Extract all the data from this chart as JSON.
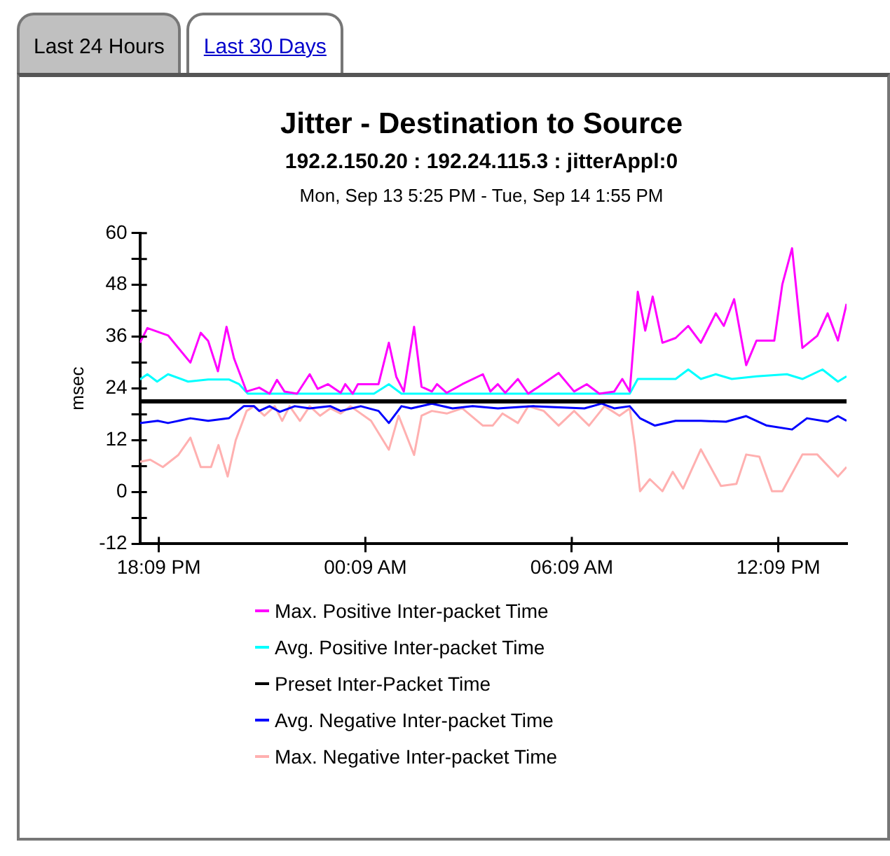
{
  "chart_data": {
    "type": "line",
    "title": "Jitter - Destination to Source",
    "subtitle": "192.2.150.20 : 192.24.115.3 : jitterAppl:0",
    "annotations": [
      "Last 24 Hours",
      "Last 30 Days",
      "Mon, Sep 13 5:25 PM - Tue, Sep 14 1:55 PM"
    ],
    "ylabel": "msec",
    "xlim": [
      "--09-13T17:36",
      "--09-14T14:08"
    ],
    "ylim": [
      -12,
      60
    ],
    "xticks": [
      {
        "value": "--09-13T18:09",
        "label": "18:09 PM"
      },
      {
        "value": "--09-14T00:09",
        "label": "00:09 AM"
      },
      {
        "value": "--09-14T06:09",
        "label": "06:09 AM"
      },
      {
        "value": "--09-14T12:09",
        "label": "12:09 PM"
      }
    ],
    "yticks": [
      -12,
      {
        "value": -6,
        "label": null
      },
      0,
      {
        "value": 6,
        "label": null
      },
      12,
      {
        "value": 18,
        "label": null
      },
      24,
      {
        "value": 30,
        "label": null
      },
      36,
      {
        "value": 42,
        "label": null
      },
      48,
      {
        "value": 54,
        "label": null
      },
      60
    ],
    "grid": false,
    "legend": "bottom",
    "marker": "none",
    "line_style": "solid",
    "series": [
      {
        "name": "Max. Positive Inter-packet Time",
        "color": "#ff00ff",
        "x": [
          "--09-13T17:36",
          "--09-13T17:49",
          "--09-13T18:25",
          "--09-13T19:04",
          "--09-13T19:22",
          "--09-13T19:35",
          "--09-13T19:52",
          "--09-13T20:07",
          "--09-13T20:20",
          "--09-13T20:42",
          "--09-13T21:04",
          "--09-13T21:22",
          "--09-13T21:35",
          "--09-13T21:48",
          "--09-13T22:10",
          "--09-13T22:32",
          "--09-13T22:46",
          "--09-13T23:04",
          "--09-13T23:26",
          "--09-13T23:34",
          "--09-13T23:47",
          "--09-13T23:56",
          "--09-14T00:32",
          "--09-14T00:50",
          "--09-14T01:03",
          "--09-14T01:16",
          "--09-14T01:34",
          "--09-14T01:47",
          "--09-14T02:05",
          "--09-14T02:14",
          "--09-14T02:31",
          "--09-14T02:58",
          "--09-14T03:34",
          "--09-14T03:47",
          "--09-14T04:00",
          "--09-14T04:13",
          "--09-14T04:35",
          "--09-14T04:53",
          "--09-14T05:11",
          "--09-14T05:46",
          "--09-14T06:13",
          "--09-14T06:35",
          "--09-14T06:57",
          "--09-14T07:23",
          "--09-14T07:37",
          "--09-14T07:50",
          "--09-14T08:04",
          "--09-14T08:17",
          "--09-14T08:30",
          "--09-14T08:47",
          "--09-14T09:10",
          "--09-14T09:32",
          "--09-14T09:54",
          "--09-14T10:20",
          "--09-14T10:34",
          "--09-14T10:52",
          "--09-14T11:13",
          "--09-14T11:31",
          "--09-14T12:02",
          "--09-14T12:16",
          "--09-14T12:33",
          "--09-14T12:51",
          "--09-14T13:17",
          "--09-14T13:35",
          "--09-14T13:53",
          "--09-14T14:08"
        ],
        "values": [
          34.6,
          38,
          36.3,
          30,
          36.9,
          35,
          28,
          38.3,
          31,
          23.3,
          24.2,
          22.8,
          26,
          23.3,
          22.8,
          27.3,
          23.9,
          25,
          23,
          25,
          22.8,
          25,
          25,
          34.6,
          26.7,
          23.3,
          38.3,
          24.4,
          23.3,
          25,
          23,
          25,
          27.3,
          23.3,
          25,
          23,
          26.2,
          22.8,
          24.4,
          27.6,
          23.3,
          25,
          22.8,
          23.3,
          26.2,
          23.3,
          46.4,
          37.4,
          45.3,
          34.6,
          35.7,
          38.5,
          34.6,
          41.4,
          38.5,
          44.7,
          29.4,
          35.1,
          35.1,
          48.1,
          56.5,
          33.4,
          36.2,
          41.4,
          35.1,
          43.6
        ]
      },
      {
        "name": "Avg. Positive Inter-packet Time",
        "color": "#00ffff",
        "x": [
          "--09-13T17:36",
          "--09-13T17:49",
          "--09-13T18:06",
          "--09-13T18:25",
          "--09-13T19:00",
          "--09-13T19:35",
          "--09-13T20:11",
          "--09-13T20:29",
          "--09-13T20:44",
          "--09-14T00:24",
          "--09-14T00:50",
          "--09-14T01:12",
          "--09-14T07:50",
          "--09-14T08:04",
          "--09-14T09:10",
          "--09-14T09:32",
          "--09-14T09:54",
          "--09-14T10:20",
          "--09-14T10:48",
          "--09-14T11:31",
          "--09-14T12:24",
          "--09-14T12:51",
          "--09-14T13:26",
          "--09-14T13:53",
          "--09-14T14:08"
        ],
        "values": [
          26.1,
          27.3,
          25.6,
          27.3,
          25.6,
          26.1,
          26.1,
          25,
          22.8,
          22.8,
          25,
          22.8,
          22.8,
          26.2,
          26.2,
          28.4,
          26.2,
          27.3,
          26.2,
          26.8,
          27.3,
          26.2,
          28.4,
          25.6,
          26.8
        ]
      },
      {
        "name": "Preset Inter-Packet Time",
        "color": "#000000",
        "x": [
          "--09-13T17:36",
          "--09-14T14:08"
        ],
        "values": [
          21,
          21
        ]
      },
      {
        "name": "Avg. Negative Inter-packet Time",
        "color": "#0000ff",
        "x": [
          "--09-13T17:36",
          "--09-13T18:07",
          "--09-13T18:25",
          "--09-13T19:04",
          "--09-13T19:35",
          "--09-13T20:11",
          "--09-13T20:37",
          "--09-13T20:55",
          "--09-13T21:04",
          "--09-13T21:22",
          "--09-13T21:40",
          "--09-13T22:06",
          "--09-13T22:32",
          "--09-13T23:08",
          "--09-13T23:26",
          "--09-14T00:01",
          "--09-14T00:32",
          "--09-14T00:50",
          "--09-14T01:12",
          "--09-14T01:29",
          "--09-14T02:05",
          "--09-14T02:41",
          "--09-14T03:16",
          "--09-14T04:00",
          "--09-14T05:02",
          "--09-14T06:31",
          "--09-14T07:01",
          "--09-14T07:23",
          "--09-14T07:50",
          "--09-14T08:08",
          "--09-14T08:34",
          "--09-14T09:10",
          "--09-14T09:54",
          "--09-14T10:38",
          "--09-14T11:13",
          "--09-14T11:49",
          "--09-14T12:33",
          "--09-14T12:59",
          "--09-14T13:35",
          "--09-14T13:53",
          "--09-14T14:08"
        ],
        "values": [
          16,
          16.5,
          16,
          17.1,
          16.5,
          17.1,
          19.9,
          19.9,
          18.8,
          19.9,
          18.6,
          19.9,
          19.4,
          19.9,
          18.8,
          19.9,
          18.8,
          16,
          19.9,
          19.4,
          20.5,
          19.4,
          19.9,
          19.4,
          19.9,
          19.4,
          20.5,
          19.4,
          19.9,
          17.1,
          15.4,
          16.5,
          16.5,
          16.3,
          17.6,
          15.4,
          14.5,
          17.1,
          16.3,
          17.6,
          16.5
        ]
      },
      {
        "name": "Max. Negative Inter-packet Time",
        "color": "#ffb0b0",
        "x": [
          "--09-13T17:36",
          "--09-13T17:54",
          "--09-13T18:16",
          "--09-13T18:43",
          "--09-13T19:04",
          "--09-13T19:22",
          "--09-13T19:40",
          "--09-13T19:53",
          "--09-13T20:09",
          "--09-13T20:23",
          "--09-13T20:42",
          "--09-13T20:55",
          "--09-13T21:13",
          "--09-13T21:31",
          "--09-13T21:44",
          "--09-13T21:57",
          "--09-13T22:15",
          "--09-13T22:32",
          "--09-13T22:50",
          "--09-13T23:08",
          "--09-13T23:26",
          "--09-13T23:43",
          "--09-14T00:19",
          "--09-14T00:50",
          "--09-14T01:07",
          "--09-14T01:34",
          "--09-14T01:47",
          "--09-14T02:05",
          "--09-14T02:31",
          "--09-14T02:58",
          "--09-14T03:34",
          "--09-14T03:51",
          "--09-14T04:08",
          "--09-14T04:35",
          "--09-14T04:53",
          "--09-14T05:20",
          "--09-14T05:46",
          "--09-14T06:13",
          "--09-14T06:39",
          "--09-14T07:06",
          "--09-14T07:32",
          "--09-14T07:50",
          "--09-14T07:59",
          "--09-14T08:08",
          "--09-14T08:25",
          "--09-14T08:47",
          "--09-14T09:05",
          "--09-14T09:23",
          "--09-14T09:54",
          "--09-14T10:29",
          "--09-14T10:56",
          "--09-14T11:13",
          "--09-14T11:36",
          "--09-14T11:58",
          "--09-14T12:16",
          "--09-14T12:51",
          "--09-14T13:17",
          "--09-14T13:53",
          "--09-14T14:08"
        ],
        "values": [
          7,
          7.5,
          5.8,
          8.6,
          12.6,
          5.8,
          5.8,
          10.9,
          3.6,
          12,
          18.8,
          19.9,
          17.7,
          19.9,
          16.5,
          19.9,
          16.5,
          19.9,
          17.7,
          19.4,
          18.2,
          19.9,
          16.5,
          9.8,
          17.7,
          8.6,
          17.7,
          18.8,
          18.2,
          19.4,
          15.4,
          15.4,
          18.2,
          16,
          19.9,
          18.8,
          15.4,
          18.8,
          15.4,
          19.9,
          17.7,
          19.4,
          10.9,
          0.2,
          3,
          0.2,
          4.7,
          0.8,
          9.9,
          1.4,
          1.9,
          8.7,
          8.2,
          0.2,
          0.2,
          8.7,
          8.7,
          3.6,
          5.8
        ]
      }
    ]
  }
}
